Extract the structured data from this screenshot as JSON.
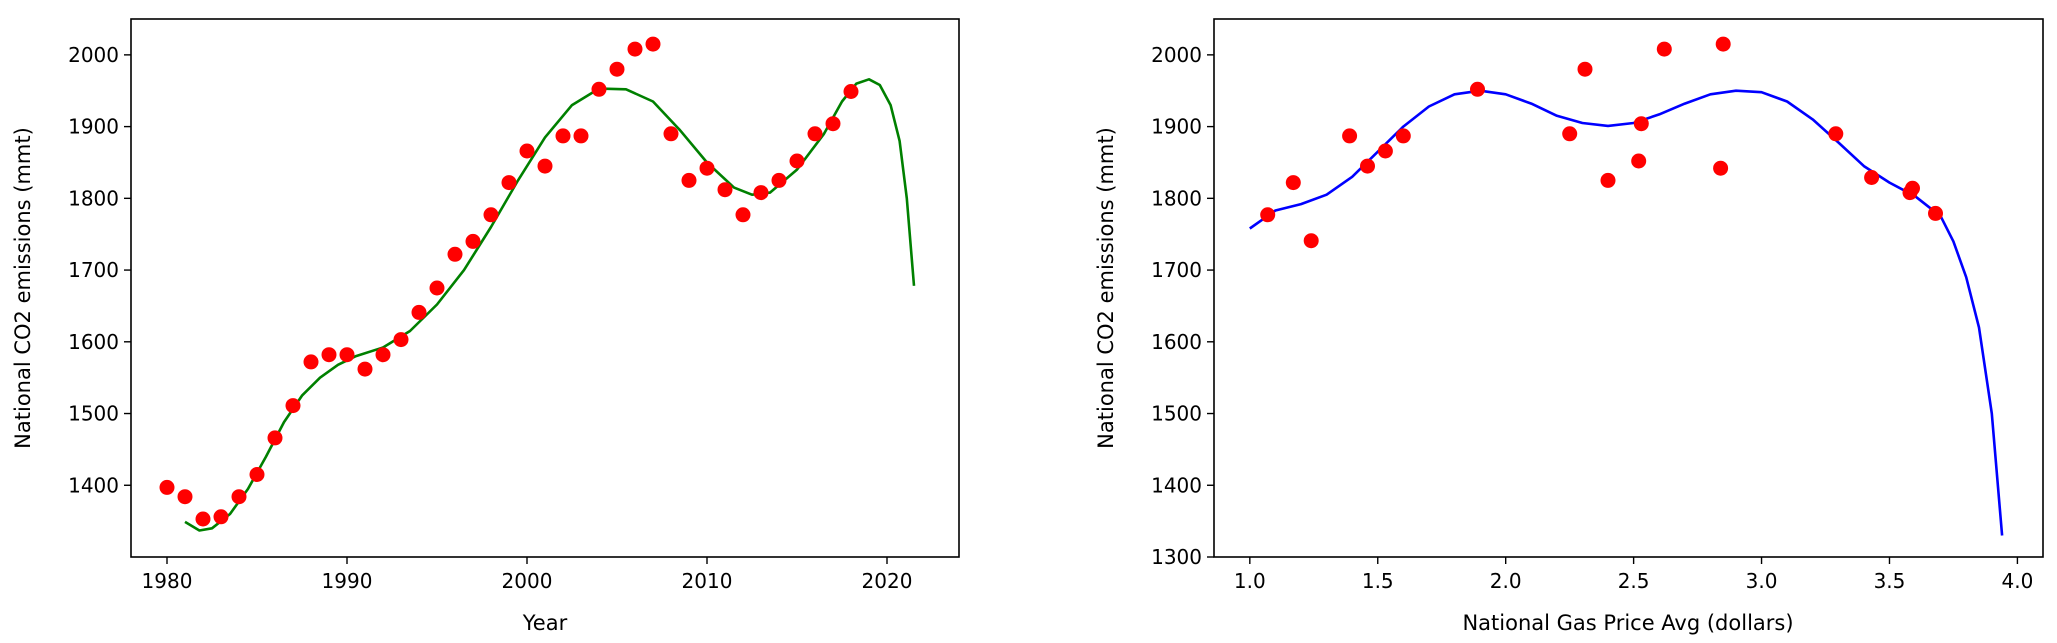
{
  "chart_data": [
    {
      "type": "scatter",
      "title": "",
      "xlabel": "Year",
      "ylabel": "National CO2 emissions (mmt)",
      "xlim": [
        1978,
        2024
      ],
      "ylim": [
        1300,
        2050
      ],
      "xticks": [
        "1980",
        "1990",
        "2000",
        "2010",
        "2020"
      ],
      "yticks": [
        "1400",
        "1500",
        "1600",
        "1700",
        "1800",
        "1900",
        "2000"
      ],
      "grid": false,
      "series": [
        {
          "kind": "scatter",
          "color": "#ff0000",
          "points": [
            [
              1980,
              1397
            ],
            [
              1981,
              1384
            ],
            [
              1982,
              1353
            ],
            [
              1983,
              1356
            ],
            [
              1984,
              1384
            ],
            [
              1985,
              1415
            ],
            [
              1986,
              1466
            ],
            [
              1987,
              1511
            ],
            [
              1988,
              1572
            ],
            [
              1989,
              1582
            ],
            [
              1990,
              1582
            ],
            [
              1991,
              1562
            ],
            [
              1992,
              1582
            ],
            [
              1993,
              1603
            ],
            [
              1994,
              1641
            ],
            [
              1995,
              1675
            ],
            [
              1996,
              1722
            ],
            [
              1997,
              1740
            ],
            [
              1998,
              1777
            ],
            [
              1999,
              1822
            ],
            [
              2000,
              1866
            ],
            [
              2001,
              1845
            ],
            [
              2002,
              1887
            ],
            [
              2003,
              1887
            ],
            [
              2004,
              1952
            ],
            [
              2005,
              1980
            ],
            [
              2006,
              2008
            ],
            [
              2007,
              2015
            ],
            [
              2008,
              1890
            ],
            [
              2009,
              1825
            ],
            [
              2010,
              1842
            ],
            [
              2011,
              1812
            ],
            [
              2012,
              1777
            ],
            [
              2013,
              1808
            ],
            [
              2014,
              1825
            ],
            [
              2015,
              1852
            ],
            [
              2016,
              1890
            ],
            [
              2017,
              1904
            ],
            [
              2018,
              1949
            ]
          ]
        },
        {
          "kind": "line",
          "color": "#008000",
          "points": [
            [
              1981,
              1349
            ],
            [
              1981.8,
              1337
            ],
            [
              1982.5,
              1340
            ],
            [
              1983.5,
              1360
            ],
            [
              1984.5,
              1395
            ],
            [
              1985.5,
              1440
            ],
            [
              1986.5,
              1488
            ],
            [
              1987.5,
              1525
            ],
            [
              1988.5,
              1550
            ],
            [
              1989.5,
              1568
            ],
            [
              1990.5,
              1580
            ],
            [
              1992,
              1592
            ],
            [
              1993.5,
              1615
            ],
            [
              1995,
              1652
            ],
            [
              1996.5,
              1700
            ],
            [
              1998,
              1760
            ],
            [
              1999.5,
              1825
            ],
            [
              2001,
              1885
            ],
            [
              2002.5,
              1930
            ],
            [
              2004,
              1953
            ],
            [
              2005.5,
              1952
            ],
            [
              2007,
              1935
            ],
            [
              2008.5,
              1895
            ],
            [
              2010,
              1850
            ],
            [
              2011.5,
              1815
            ],
            [
              2012.5,
              1805
            ],
            [
              2013.5,
              1808
            ],
            [
              2015,
              1840
            ],
            [
              2016.5,
              1890
            ],
            [
              2017.5,
              1935
            ],
            [
              2018.3,
              1960
            ],
            [
              2019,
              1966
            ],
            [
              2019.6,
              1958
            ],
            [
              2020.2,
              1930
            ],
            [
              2020.7,
              1880
            ],
            [
              2021.1,
              1800
            ],
            [
              2021.5,
              1678
            ]
          ]
        }
      ]
    },
    {
      "type": "scatter",
      "title": "",
      "xlabel": "National Gas Price Avg (dollars)",
      "ylabel": "National CO2 emissions (mmt)",
      "xlim": [
        0.86,
        4.1
      ],
      "ylim": [
        1300,
        2050
      ],
      "xticks": [
        "1.0",
        "1.5",
        "2.0",
        "2.5",
        "3.0",
        "3.5",
        "4.0"
      ],
      "yticks": [
        "1300",
        "1400",
        "1500",
        "1600",
        "1700",
        "1800",
        "1900",
        "2000"
      ],
      "grid": false,
      "series": [
        {
          "kind": "scatter",
          "color": "#ff0000",
          "points": [
            [
              1.07,
              1777
            ],
            [
              1.17,
              1822
            ],
            [
              1.24,
              1741
            ],
            [
              1.39,
              1887
            ],
            [
              1.46,
              1845
            ],
            [
              1.53,
              1866
            ],
            [
              1.6,
              1887
            ],
            [
              1.89,
              1952
            ],
            [
              2.25,
              1890
            ],
            [
              2.31,
              1980
            ],
            [
              2.4,
              1825
            ],
            [
              2.52,
              1852
            ],
            [
              2.53,
              1904
            ],
            [
              2.62,
              2008
            ],
            [
              2.84,
              1842
            ],
            [
              2.85,
              2015
            ],
            [
              3.29,
              1890
            ],
            [
              3.43,
              1829
            ],
            [
              3.58,
              1808
            ],
            [
              3.59,
              1814
            ],
            [
              3.68,
              1779
            ]
          ]
        },
        {
          "kind": "line",
          "color": "#0000ff",
          "points": [
            [
              1.0,
              1758
            ],
            [
              1.1,
              1783
            ],
            [
              1.2,
              1792
            ],
            [
              1.3,
              1805
            ],
            [
              1.4,
              1830
            ],
            [
              1.5,
              1865
            ],
            [
              1.6,
              1900
            ],
            [
              1.7,
              1928
            ],
            [
              1.8,
              1945
            ],
            [
              1.9,
              1950
            ],
            [
              2.0,
              1945
            ],
            [
              2.1,
              1932
            ],
            [
              2.2,
              1915
            ],
            [
              2.3,
              1905
            ],
            [
              2.4,
              1901
            ],
            [
              2.5,
              1905
            ],
            [
              2.6,
              1917
            ],
            [
              2.7,
              1932
            ],
            [
              2.8,
              1945
            ],
            [
              2.9,
              1950
            ],
            [
              3.0,
              1948
            ],
            [
              3.1,
              1935
            ],
            [
              3.2,
              1910
            ],
            [
              3.3,
              1878
            ],
            [
              3.4,
              1845
            ],
            [
              3.5,
              1822
            ],
            [
              3.6,
              1803
            ],
            [
              3.7,
              1775
            ],
            [
              3.75,
              1740
            ],
            [
              3.8,
              1690
            ],
            [
              3.85,
              1620
            ],
            [
              3.9,
              1500
            ],
            [
              3.94,
              1330
            ]
          ]
        }
      ]
    }
  ]
}
